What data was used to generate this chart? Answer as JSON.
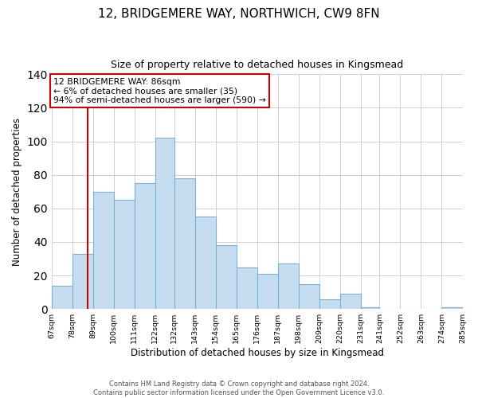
{
  "title": "12, BRIDGEMERE WAY, NORTHWICH, CW9 8FN",
  "subtitle": "Size of property relative to detached houses in Kingsmead",
  "xlabel": "Distribution of detached houses by size in Kingsmead",
  "ylabel": "Number of detached properties",
  "bar_color": "#c6ddf0",
  "bar_edge_color": "#7ab0d4",
  "bin_edges": [
    67,
    78,
    89,
    100,
    111,
    122,
    132,
    143,
    154,
    165,
    176,
    187,
    198,
    209,
    220,
    231,
    241,
    252,
    263,
    274,
    285
  ],
  "bar_heights": [
    14,
    33,
    70,
    65,
    75,
    102,
    78,
    55,
    38,
    25,
    21,
    27,
    15,
    6,
    9,
    1,
    0,
    0,
    0,
    1
  ],
  "x_tick_labels": [
    "67sqm",
    "78sqm",
    "89sqm",
    "100sqm",
    "111sqm",
    "122sqm",
    "132sqm",
    "143sqm",
    "154sqm",
    "165sqm",
    "176sqm",
    "187sqm",
    "198sqm",
    "209sqm",
    "220sqm",
    "231sqm",
    "241sqm",
    "252sqm",
    "263sqm",
    "274sqm",
    "285sqm"
  ],
  "ylim": [
    0,
    140
  ],
  "yticks": [
    0,
    20,
    40,
    60,
    80,
    100,
    120,
    140
  ],
  "property_size": 86,
  "vline_color": "#cc0000",
  "annotation_title": "12 BRIDGEMERE WAY: 86sqm",
  "annotation_line1": "← 6% of detached houses are smaller (35)",
  "annotation_line2": "94% of semi-detached houses are larger (590) →",
  "annotation_box_color": "#ffffff",
  "annotation_box_edge": "#cc0000",
  "footer_line1": "Contains HM Land Registry data © Crown copyright and database right 2024.",
  "footer_line2": "Contains public sector information licensed under the Open Government Licence v3.0.",
  "background_color": "#ffffff",
  "grid_color": "#d0d0d0"
}
